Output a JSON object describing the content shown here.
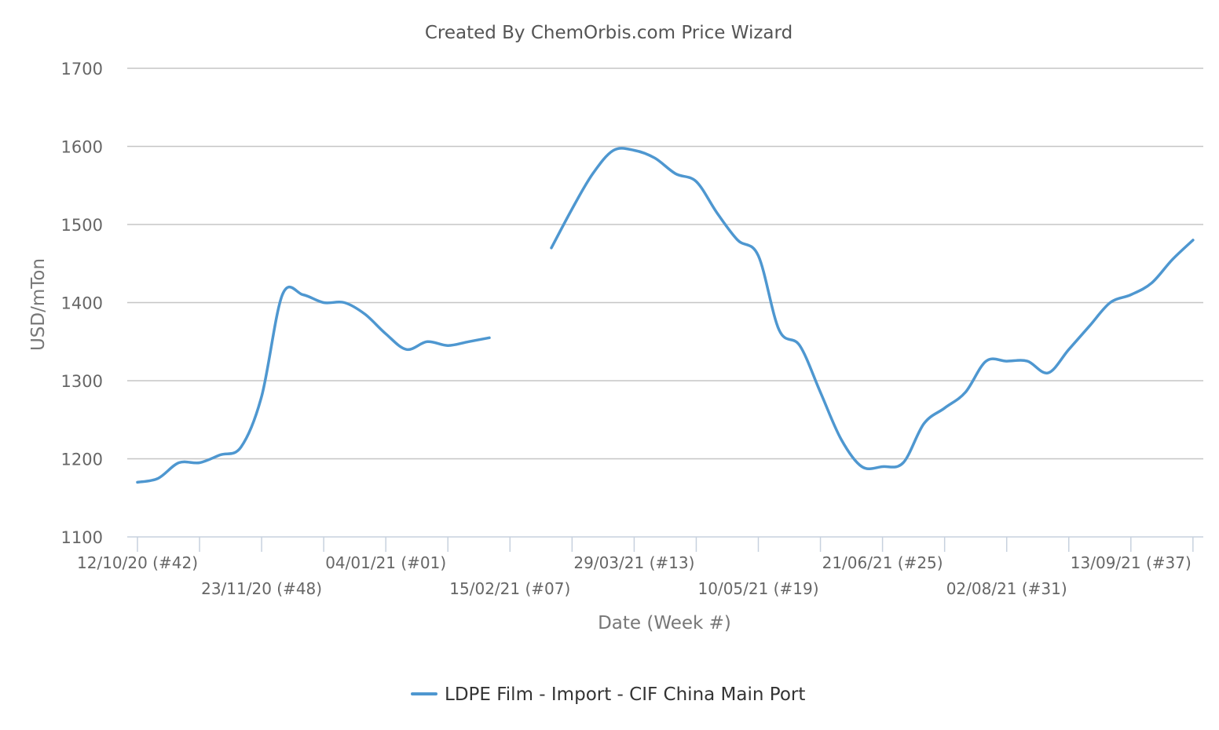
{
  "chart_data": {
    "type": "line",
    "title": "Created By ChemOrbis.com Price Wizard",
    "xlabel": "Date (Week #)",
    "ylabel": "USD/mTon",
    "ylim": [
      1100,
      1700
    ],
    "yticks": [
      1100,
      1200,
      1300,
      1400,
      1500,
      1600,
      1700
    ],
    "grid": true,
    "legend_position": "bottom",
    "x_start_week_label": "12/10/20 (#42)",
    "x_ticks": [
      {
        "label": "12/10/20 (#42)",
        "week_index": 0,
        "row": 1
      },
      {
        "label": "23/11/20 (#48)",
        "week_index": 6,
        "row": 2
      },
      {
        "label": "04/01/21 (#01)",
        "week_index": 12,
        "row": 1
      },
      {
        "label": "15/02/21 (#07)",
        "week_index": 18,
        "row": 2
      },
      {
        "label": "29/03/21 (#13)",
        "week_index": 24,
        "row": 1
      },
      {
        "label": "10/05/21 (#19)",
        "week_index": 30,
        "row": 2
      },
      {
        "label": "21/06/21 (#25)",
        "week_index": 36,
        "row": 1
      },
      {
        "label": "02/08/21 (#31)",
        "week_index": 42,
        "row": 2
      },
      {
        "label": "13/09/21 (#37)",
        "week_index": 48,
        "row": 1
      }
    ],
    "x_minor_ticks": [
      3,
      9,
      15,
      21,
      27,
      33,
      39,
      45,
      51
    ],
    "series": [
      {
        "name": "LDPE Film - Import - CIF China Main Port",
        "color": "#4e97d0",
        "values": [
          1170,
          1175,
          1195,
          1195,
          1205,
          1215,
          1280,
          1410,
          1410,
          1400,
          1400,
          1385,
          1360,
          1340,
          1350,
          1345,
          1350,
          1355,
          null,
          null,
          1470,
          1520,
          1565,
          1595,
          1595,
          1585,
          1565,
          1555,
          1515,
          1480,
          1460,
          1365,
          1345,
          1285,
          1225,
          1190,
          1190,
          1195,
          1245,
          1265,
          1285,
          1325,
          1325,
          1325,
          1310,
          1340,
          1370,
          1400,
          1410,
          1425,
          1455,
          1480
        ]
      }
    ]
  }
}
